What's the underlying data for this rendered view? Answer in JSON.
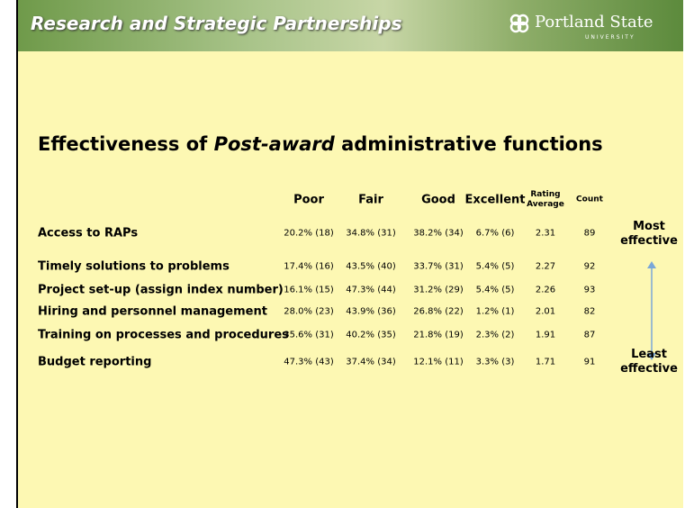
{
  "header": {
    "title": "Research and Strategic Partnerships",
    "logo": {
      "name": "Portland State",
      "sub": "UNIVERSITY"
    }
  },
  "slide_title": {
    "parts": [
      "Effectiveness of ",
      "Post-award",
      " administrative functions"
    ]
  },
  "table": {
    "columns": [
      "Poor",
      "Fair",
      "Good",
      "Excellent",
      "Rating Average",
      "Count"
    ],
    "rows": [
      {
        "label": "Access to RAPs",
        "cells": [
          "20.2% (18)",
          "34.8% (31)",
          "38.2% (34)",
          "6.7% (6)",
          "2.31",
          "89"
        ]
      },
      {
        "label": "Timely solutions to problems",
        "cells": [
          "17.4% (16)",
          "43.5% (40)",
          "33.7% (31)",
          "5.4% (5)",
          "2.27",
          "92"
        ]
      },
      {
        "label": "Project set-up (assign index number)",
        "cells": [
          "16.1% (15)",
          "47.3% (44)",
          "31.2% (29)",
          "5.4% (5)",
          "2.26",
          "93"
        ]
      },
      {
        "label": "Hiring and personnel management",
        "cells": [
          "28.0% (23)",
          "43.9% (36)",
          "26.8% (22)",
          "1.2% (1)",
          "2.01",
          "82"
        ]
      },
      {
        "label": "Training on processes and procedures",
        "cells": [
          "35.6% (31)",
          "40.2% (35)",
          "21.8% (19)",
          "2.3% (2)",
          "1.91",
          "87"
        ]
      },
      {
        "label": "Budget reporting",
        "cells": [
          "47.3% (43)",
          "37.4% (34)",
          "12.1% (11)",
          "3.3% (3)",
          "1.71",
          "91"
        ]
      }
    ]
  },
  "annotations": {
    "most": "Most effective",
    "least": "Least effective"
  }
}
